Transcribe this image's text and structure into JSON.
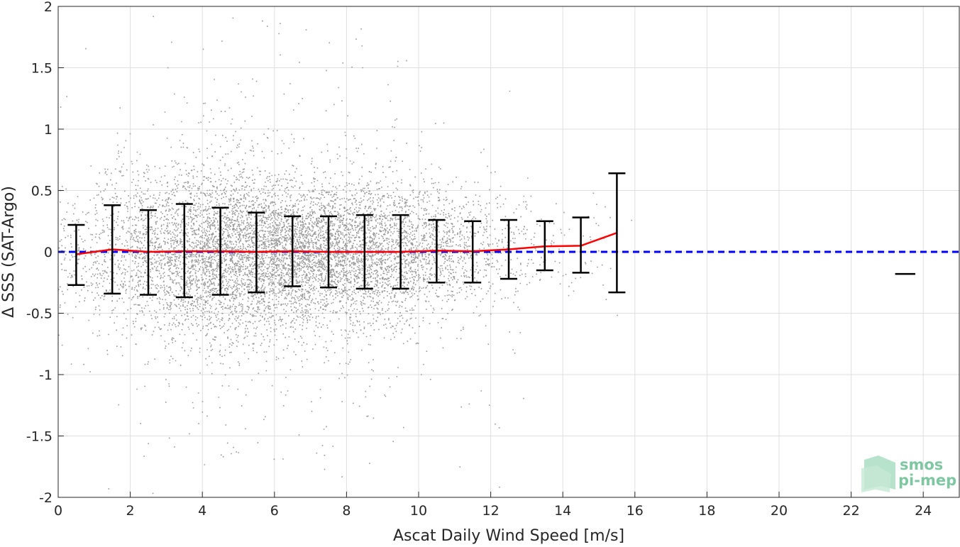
{
  "chart_data": {
    "type": "scatter",
    "xlabel": "Ascat Daily Wind Speed [m/s]",
    "ylabel": "Δ SSS (SAT-Argo)",
    "xlim": [
      0,
      25
    ],
    "ylim": [
      -2,
      2
    ],
    "xticks": [
      0,
      2,
      4,
      6,
      8,
      10,
      12,
      14,
      16,
      18,
      20,
      22,
      24
    ],
    "yticks": [
      -2,
      -1.5,
      -1,
      -0.5,
      0,
      0.5,
      1,
      1.5,
      2
    ],
    "grid": true,
    "scatter_color": "#999999",
    "mean_line": {
      "color": "#ff0000",
      "x": [
        0.5,
        1.5,
        2.5,
        3.5,
        4.5,
        5.5,
        6.5,
        7.5,
        8.5,
        9.5,
        10.5,
        11.5,
        12.5,
        13.5,
        14.5,
        15.5
      ],
      "y": [
        -0.02,
        0.02,
        0.0,
        0.005,
        0.005,
        0.0,
        0.005,
        0.0,
        0.0,
        0.0,
        0.01,
        0.005,
        0.02,
        0.045,
        0.05,
        0.155
      ]
    },
    "error_bars": {
      "color": "#000000",
      "x": [
        0.5,
        1.5,
        2.5,
        3.5,
        4.5,
        5.5,
        6.5,
        7.5,
        8.5,
        9.5,
        10.5,
        11.5,
        12.5,
        13.5,
        14.5,
        15.5
      ],
      "lower": [
        -0.27,
        -0.34,
        -0.35,
        -0.37,
        -0.35,
        -0.33,
        -0.28,
        -0.29,
        -0.3,
        -0.3,
        -0.25,
        -0.25,
        -0.22,
        -0.15,
        -0.17,
        -0.33
      ],
      "upper": [
        0.22,
        0.38,
        0.34,
        0.39,
        0.36,
        0.32,
        0.29,
        0.29,
        0.3,
        0.3,
        0.26,
        0.25,
        0.26,
        0.25,
        0.28,
        0.64
      ]
    },
    "isolated_mean": {
      "x": 23.5,
      "y": -0.18,
      "half_width": 0.28
    },
    "reference_line": {
      "y": 0,
      "color": "#0000ff",
      "style": "dashed"
    }
  },
  "logo": {
    "line1": "smos",
    "line2": "pi-mep"
  }
}
